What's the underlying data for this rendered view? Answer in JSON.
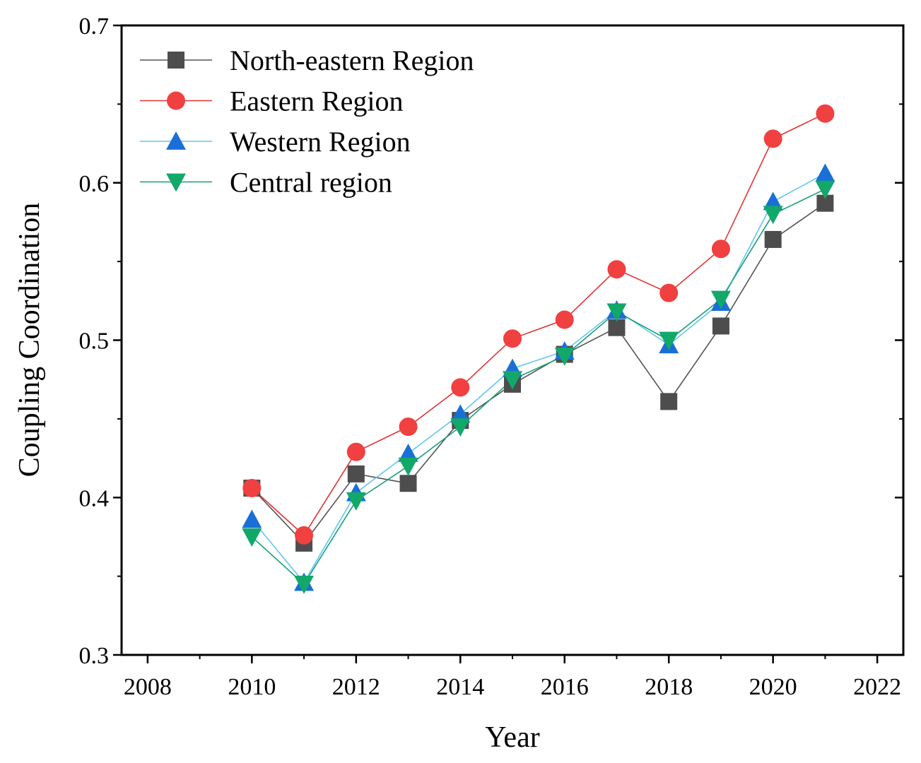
{
  "chart_data": {
    "type": "line",
    "title": "",
    "xlabel": "Year",
    "ylabel": "Coupling Coordination",
    "xlim": [
      2007.5,
      2022.5
    ],
    "ylim": [
      0.3,
      0.7
    ],
    "xticks": [
      2008,
      2010,
      2012,
      2014,
      2016,
      2018,
      2020,
      2022
    ],
    "xtick_labels": [
      "2008",
      "2010",
      "2012",
      "2014",
      "2016",
      "2018",
      "2020",
      "2022"
    ],
    "yticks": [
      0.3,
      0.4,
      0.5,
      0.6,
      0.7
    ],
    "ytick_labels": [
      "0.3",
      "0.4",
      "0.5",
      "0.6",
      "0.7"
    ],
    "grid": false,
    "legend_position": "top-left",
    "x": [
      2010,
      2011,
      2012,
      2013,
      2014,
      2015,
      2016,
      2017,
      2018,
      2019,
      2020,
      2021
    ],
    "series": [
      {
        "name": "North-eastern Region",
        "marker": "square",
        "color": "#4d4d4d",
        "line_color": "#555555",
        "values": [
          0.406,
          0.371,
          0.415,
          0.409,
          0.449,
          0.472,
          0.491,
          0.508,
          0.461,
          0.509,
          0.564,
          0.587
        ]
      },
      {
        "name": "Eastern Region",
        "marker": "circle",
        "color": "#f04040",
        "line_color": "#e03535",
        "values": [
          0.406,
          0.376,
          0.429,
          0.445,
          0.47,
          0.501,
          0.513,
          0.545,
          0.53,
          0.558,
          0.628,
          0.644
        ]
      },
      {
        "name": "Western Region",
        "marker": "triangle-up",
        "color": "#1a6fd6",
        "line_color": "#5fc6f0",
        "values": [
          0.386,
          0.346,
          0.403,
          0.428,
          0.453,
          0.482,
          0.493,
          0.519,
          0.497,
          0.524,
          0.588,
          0.606
        ]
      },
      {
        "name": "Central region",
        "marker": "triangle-down",
        "color": "#12a86a",
        "line_color": "#1b9e77",
        "values": [
          0.375,
          0.345,
          0.398,
          0.42,
          0.445,
          0.475,
          0.49,
          0.518,
          0.5,
          0.526,
          0.58,
          0.596
        ]
      }
    ]
  }
}
